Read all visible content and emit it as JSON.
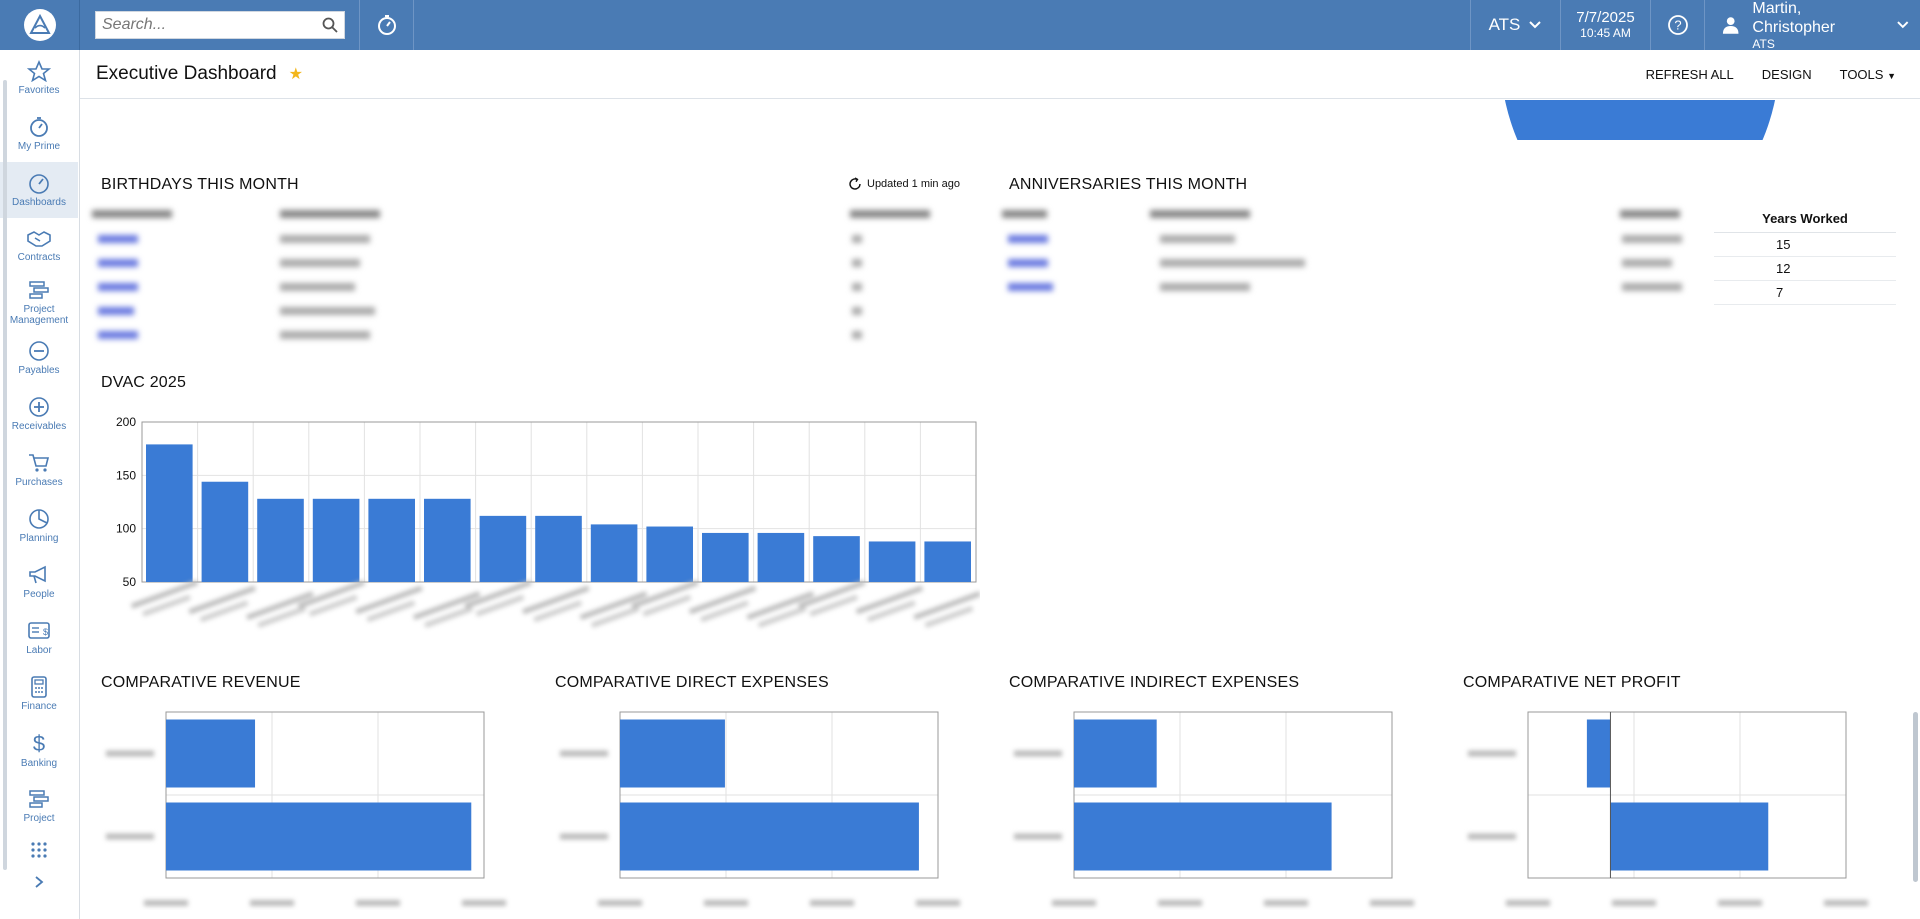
{
  "topbar": {
    "search_placeholder": "Search...",
    "company": "ATS",
    "date": "7/7/2025",
    "time": "10:45 AM",
    "user_name": "Martin, Christopher",
    "user_company": "ATS"
  },
  "sidebar": {
    "items": [
      {
        "label": "Favorites"
      },
      {
        "label": "My Prime"
      },
      {
        "label": "Dashboards"
      },
      {
        "label": "Contracts"
      },
      {
        "label": "Project Management"
      },
      {
        "label": "Payables"
      },
      {
        "label": "Receivables"
      },
      {
        "label": "Purchases"
      },
      {
        "label": "Planning"
      },
      {
        "label": "People"
      },
      {
        "label": "Labor"
      },
      {
        "label": "Finance"
      },
      {
        "label": "Banking"
      },
      {
        "label": "Project"
      }
    ]
  },
  "header": {
    "title": "Executive Dashboard",
    "refresh_all": "REFRESH ALL",
    "design": "DESIGN",
    "tools": "TOOLS"
  },
  "birthdays": {
    "title": "BIRTHDAYS THIS MONTH",
    "updated": "Updated 1 min ago"
  },
  "anniversaries": {
    "title": "ANNIVERSARIES THIS MONTH",
    "years_header": "Years Worked",
    "years": [
      "15",
      "12",
      "7"
    ]
  },
  "dvac": {
    "title": "DVAC 2025"
  },
  "comparative": {
    "revenue_title": "COMPARATIVE REVENUE",
    "direct_title": "COMPARATIVE DIRECT EXPENSES",
    "indirect_title": "COMPARATIVE INDIRECT EXPENSES",
    "netprofit_title": "COMPARATIVE NET PROFIT"
  },
  "chart_data": [
    {
      "type": "bar",
      "title": "DVAC 2025",
      "ylim": [
        50,
        200
      ],
      "yticks": [
        50,
        100,
        150,
        200
      ],
      "values": [
        179,
        144,
        128,
        128,
        128,
        128,
        112,
        112,
        104,
        102,
        96,
        96,
        93,
        88,
        88
      ],
      "color": "#3a7bd5"
    },
    {
      "type": "bar",
      "orientation": "horizontal",
      "title": "COMPARATIVE REVENUE",
      "values": [
        0.28,
        0.96
      ],
      "color": "#3a7bd5"
    },
    {
      "type": "bar",
      "orientation": "horizontal",
      "title": "COMPARATIVE DIRECT EXPENSES",
      "values": [
        0.33,
        0.94
      ],
      "color": "#3a7bd5"
    },
    {
      "type": "bar",
      "orientation": "horizontal",
      "title": "COMPARATIVE INDIRECT EXPENSES",
      "values": [
        0.26,
        0.81
      ],
      "color": "#3a7bd5"
    },
    {
      "type": "bar",
      "orientation": "horizontal",
      "title": "COMPARATIVE NET PROFIT",
      "values": [
        -0.1,
        0.67
      ],
      "color": "#3a7bd5"
    }
  ]
}
